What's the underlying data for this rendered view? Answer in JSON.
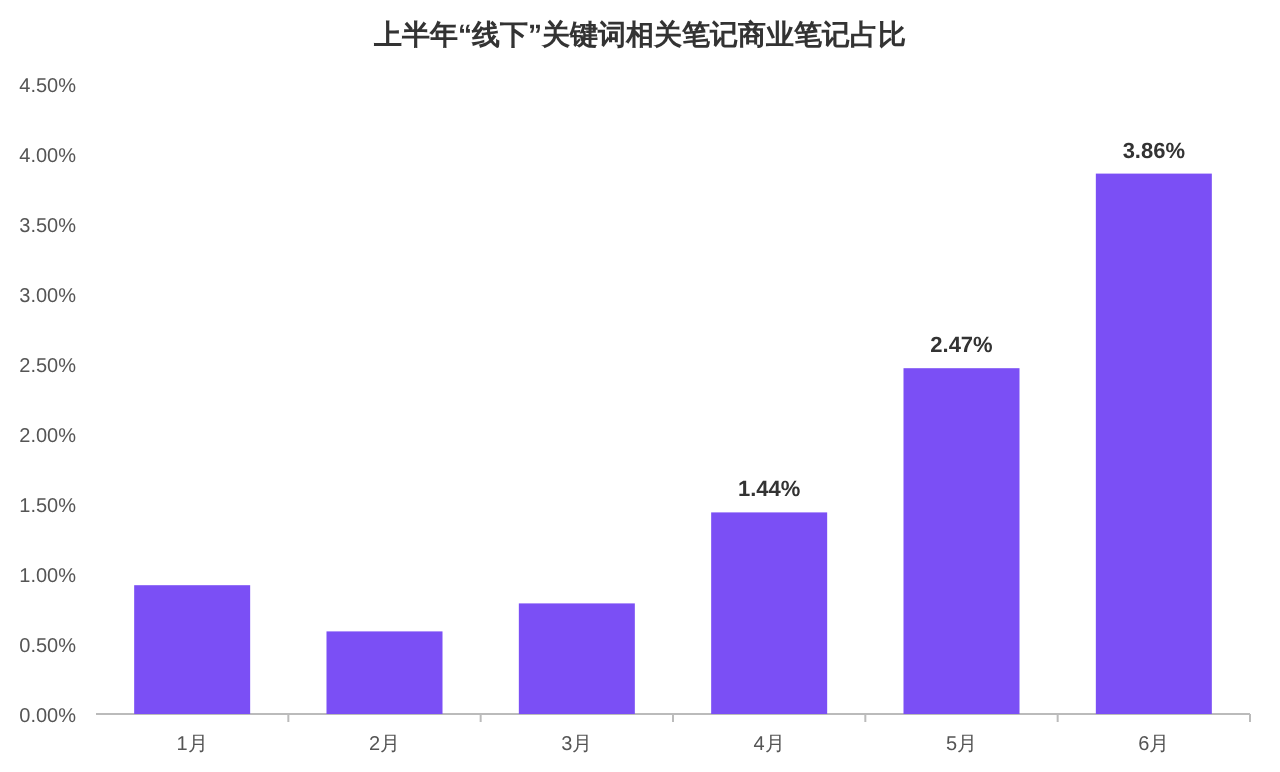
{
  "chart_data": {
    "type": "bar",
    "title": "上半年“线下”关键词相关笔记商业笔记占比",
    "categories": [
      "1月",
      "2月",
      "3月",
      "4月",
      "5月",
      "6月"
    ],
    "values": [
      0.92,
      0.59,
      0.79,
      1.44,
      2.47,
      3.86
    ],
    "value_labels": [
      null,
      null,
      null,
      "1.44%",
      "2.47%",
      "3.86%"
    ],
    "color": "#7b4ff5",
    "ylim": [
      0,
      4.5
    ],
    "yticks": [
      {
        "value": 0,
        "label": "0.00%"
      },
      {
        "value": 0.5,
        "label": "0.50%"
      },
      {
        "value": 1,
        "label": "1.00%"
      },
      {
        "value": 1.5,
        "label": "1.50%"
      },
      {
        "value": 2,
        "label": "2.00%"
      },
      {
        "value": 2.5,
        "label": "2.50%"
      },
      {
        "value": 3,
        "label": "3.00%"
      },
      {
        "value": 3.5,
        "label": "3.50%"
      },
      {
        "value": 4,
        "label": "4.00%"
      },
      {
        "value": 4.5,
        "label": "4.50%"
      }
    ],
    "grid": false
  }
}
